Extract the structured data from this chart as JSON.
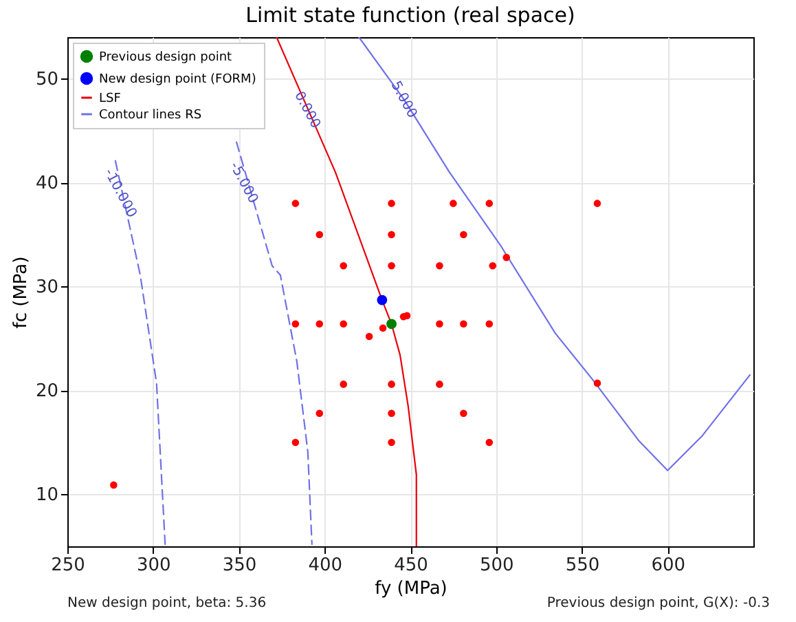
{
  "chart_data": {
    "type": "scatter",
    "title": "Limit state function (real space)",
    "xlabel": "fy (MPa)",
    "ylabel": "fc (MPa)",
    "xlim": [
      250,
      650
    ],
    "xticks": [
      250,
      300,
      350,
      400,
      450,
      500,
      550,
      600
    ],
    "ylim": [
      5,
      54
    ],
    "yticks": [
      10,
      20,
      30,
      40,
      50
    ],
    "grid": true,
    "legend": "top left",
    "series": [
      {
        "color": "#ff0000",
        "x": [
          383,
          439,
          475,
          496,
          559,
          397,
          439,
          481,
          411,
          439,
          467,
          498,
          506,
          383,
          397,
          411,
          467,
          481,
          496,
          434,
          446,
          448,
          426,
          411,
          439,
          467,
          559,
          397,
          439,
          481,
          383,
          439,
          496,
          277
        ],
        "values": [
          38,
          38,
          38,
          38,
          38,
          35,
          35,
          35,
          32,
          32,
          32,
          32,
          32.8,
          26.4,
          26.4,
          26.4,
          26.4,
          26.4,
          26.4,
          26,
          27.1,
          27.2,
          25.2,
          20.6,
          20.6,
          20.6,
          20.7,
          17.8,
          17.8,
          17.8,
          15,
          15,
          15,
          10.9
        ]
      },
      {
        "name": "Previous design point",
        "color": "#008000",
        "x": [
          439
        ],
        "values": [
          26.4
        ]
      },
      {
        "name": "New design point (FORM)",
        "color": "#0000ff",
        "x": [
          433.5
        ],
        "values": [
          28.7
        ]
      },
      {
        "name": "LSF",
        "type": "line",
        "color": "#e8000b",
        "line_style": "solid",
        "x": [
          372,
          389.4,
          406.3,
          433.5,
          439,
          444,
          448.7,
          453.5,
          453.5
        ],
        "values": [
          54,
          47.4,
          41,
          28.7,
          26.4,
          23.4,
          18.5,
          11.9,
          5
        ]
      },
      {
        "name": "Contour lines RS",
        "type": "line",
        "color": "#7070e8",
        "line_style": "solid",
        "x": [
          420,
          446.3,
          472.8,
          502.4,
          534.5,
          556,
          583,
          600,
          620,
          648
        ],
        "values": [
          54,
          48,
          41,
          34,
          25.5,
          21.1,
          15.2,
          12.3,
          15.6,
          21.5
        ]
      },
      {
        "type": "line",
        "color": "#7070e8",
        "line_style": "dashed",
        "x": [
          348.6,
          369.4,
          374.2,
          383.8,
          390.2,
          392.6
        ],
        "values": [
          43.9,
          32,
          31.1,
          22.8,
          14.1,
          5.2
        ]
      },
      {
        "type": "line",
        "color": "#7070e8",
        "line_style": "dashed",
        "x": [
          278,
          292.5,
          302,
          307
        ],
        "values": [
          42.1,
          31.1,
          20.7,
          5.2
        ]
      }
    ],
    "annotations": [
      {
        "text": "0.000",
        "x": 390,
        "y": 47
      },
      {
        "text": "5.000",
        "x": 446.3,
        "y": 48
      },
      {
        "text": "-5.000",
        "x": 353,
        "y": 40
      },
      {
        "text": "-10.000",
        "x": 281,
        "y": 39
      },
      "New design point, beta: 5.36",
      "Previous design point, G(X): -0.3"
    ]
  }
}
